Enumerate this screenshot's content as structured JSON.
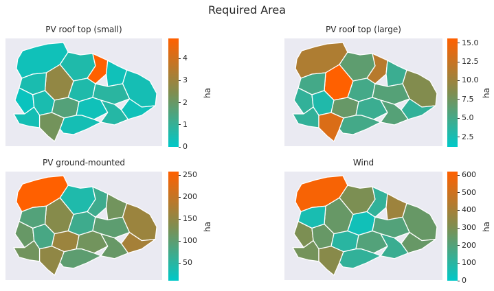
{
  "suptitle": "Required Area",
  "chart_data": [
    {
      "type": "choropleth",
      "title": "PV roof top (small)",
      "colorbar_label": "ha",
      "ticks": [
        "0",
        "1",
        "2",
        "3",
        "4"
      ],
      "range": [
        0,
        4.9
      ],
      "colors": [
        "#00c8c8",
        "#808d4f",
        "#ff6000"
      ]
    },
    {
      "type": "choropleth",
      "title": "PV roof top (large)",
      "colorbar_label": "ha",
      "ticks": [
        "2.5",
        "5.0",
        "7.5",
        "10.0",
        "12.5",
        "15.0"
      ],
      "range": [
        1.2,
        15.6
      ],
      "colors": [
        "#00c8c8",
        "#808d4f",
        "#ff6000"
      ]
    },
    {
      "type": "choropleth",
      "title": "PV ground-mounted",
      "colorbar_label": "ha",
      "ticks": [
        "50",
        "100",
        "150",
        "200",
        "250"
      ],
      "range": [
        10,
        258
      ],
      "colors": [
        "#00c8c8",
        "#808d4f",
        "#ff6000"
      ]
    },
    {
      "type": "choropleth",
      "title": "Wind",
      "colorbar_label": "ha",
      "ticks": [
        "0",
        "100",
        "200",
        "300",
        "400",
        "500",
        "600"
      ],
      "range": [
        0,
        620
      ],
      "colors": [
        "#00c8c8",
        "#808d4f",
        "#ff6000"
      ]
    }
  ]
}
